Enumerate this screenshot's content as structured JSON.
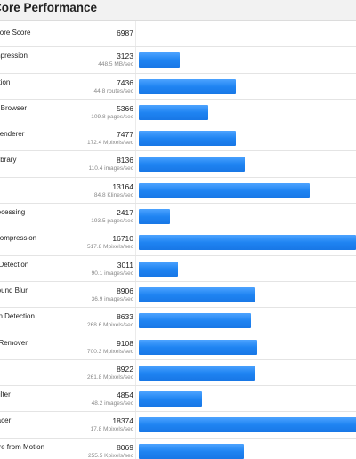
{
  "header": {
    "title": "Core Performance"
  },
  "summary": {
    "label": "Core Score",
    "score": "6987"
  },
  "scale_max": 16710,
  "workloads": [
    {
      "name": "mpression",
      "score": "3123",
      "score_value": 3123,
      "rate": "448.5 MB/sec"
    },
    {
      "name": "ation",
      "score": "7436",
      "score_value": 7436,
      "rate": "44.8 routes/sec"
    },
    {
      "name": "5 Browser",
      "score": "5366",
      "score_value": 5366,
      "rate": "109.8 pages/sec"
    },
    {
      "name": "Renderer",
      "score": "7477",
      "score_value": 7477,
      "rate": "172.4 Mpixels/sec"
    },
    {
      "name": "Library",
      "score": "8136",
      "score_value": 8136,
      "rate": "110.4 images/sec"
    },
    {
      "name": "",
      "score": "13164",
      "score_value": 13164,
      "rate": "84.8 Klines/sec"
    },
    {
      "name": "rocessing",
      "score": "2417",
      "score_value": 2417,
      "rate": "193.5 pages/sec"
    },
    {
      "name": "Compression",
      "score": "16710",
      "score_value": 16710,
      "rate": "517.8 Mpixels/sec"
    },
    {
      "name": "t Detection",
      "score": "3011",
      "score_value": 3011,
      "rate": "90.1 images/sec"
    },
    {
      "name": "round Blur",
      "score": "8906",
      "score_value": 8906,
      "rate": "36.9 images/sec"
    },
    {
      "name": "on Detection",
      "score": "8633",
      "score_value": 8633,
      "rate": "268.6 Mpixels/sec"
    },
    {
      "name": "t Remover",
      "score": "9108",
      "score_value": 9108,
      "rate": "700.3 Mpixels/sec"
    },
    {
      "name": "",
      "score": "8922",
      "score_value": 8922,
      "rate": "261.8 Mpixels/sec"
    },
    {
      "name": "Filter",
      "score": "4854",
      "score_value": 4854,
      "rate": "48.2 images/sec"
    },
    {
      "name": "racer",
      "score": "18374",
      "score_value": 18374,
      "rate": "17.8 Mpixels/sec"
    },
    {
      "name": "ure from Motion",
      "score": "8069",
      "score_value": 8069,
      "rate": "255.5 Kpixels/sec"
    }
  ],
  "colors": {
    "bar": "#1f84f2",
    "header_bg": "#f2f2f2"
  }
}
